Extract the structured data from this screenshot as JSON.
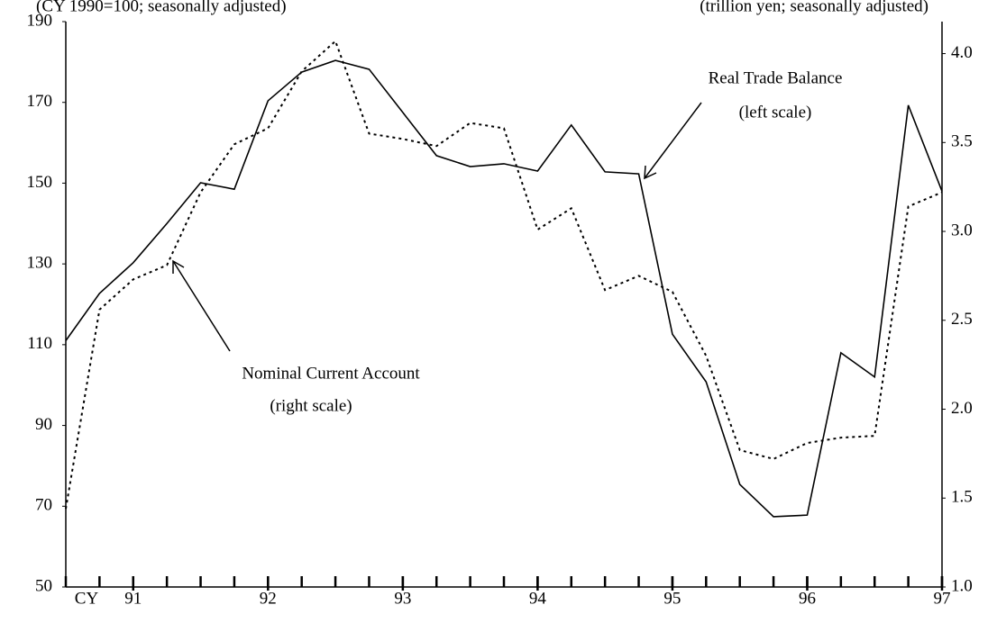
{
  "chart_data": {
    "type": "line",
    "left_axis_note": "(CY 1990=100; seasonally adjusted)",
    "right_axis_note": "(trillion yen; seasonally adjusted)",
    "x_prefix": "CY",
    "x": [
      90.5,
      90.75,
      91,
      91.25,
      91.5,
      91.75,
      92,
      92.25,
      92.5,
      92.75,
      93,
      93.25,
      93.5,
      93.75,
      94,
      94.25,
      94.5,
      94.75,
      95,
      95.25,
      95.5,
      95.75,
      96,
      96.25,
      96.5,
      96.75,
      97
    ],
    "xlim": [
      90.5,
      97
    ],
    "xticks": [
      91,
      92,
      93,
      94,
      95,
      96,
      97
    ],
    "ylim": [
      50,
      190
    ],
    "yticks": [
      50,
      70,
      90,
      110,
      130,
      150,
      170,
      190
    ],
    "y2lim": [
      1.0,
      4.18
    ],
    "y2ticks": [
      {
        "value": 1,
        "label": "1.0"
      },
      1.5,
      {
        "value": 2,
        "label": "2.0"
      },
      2.5,
      {
        "value": 3,
        "label": "3.0"
      },
      3.5,
      {
        "value": 4,
        "label": "4.0"
      }
    ],
    "series": [
      {
        "name": "Real Trade Balance",
        "note": "(left scale)",
        "color": "#000000",
        "dash": "solid",
        "values": [
          111,
          122.7,
          130.3,
          140,
          150.1,
          148.5,
          170.4,
          177.5,
          180.4,
          178.2,
          167.5,
          156.8,
          154.1,
          154.8,
          153,
          164.4,
          152.8,
          152.3,
          112.6,
          100.8,
          75.4,
          67.4,
          67.8,
          108,
          102,
          169.3,
          148
        ]
      },
      {
        "name": "Nominal Current Account",
        "note": "(right scale)",
        "color": "#000000",
        "dash": "dotted",
        "axis": "y2",
        "values": [
          1.44,
          2.56,
          2.73,
          2.81,
          3.22,
          3.49,
          3.58,
          3.9,
          4.07,
          3.55,
          3.52,
          3.48,
          3.61,
          3.58,
          3.01,
          3.13,
          2.67,
          2.75,
          2.66,
          2.3,
          1.77,
          1.72,
          1.81,
          1.84,
          1.85,
          3.14,
          3.22
        ]
      }
    ]
  }
}
